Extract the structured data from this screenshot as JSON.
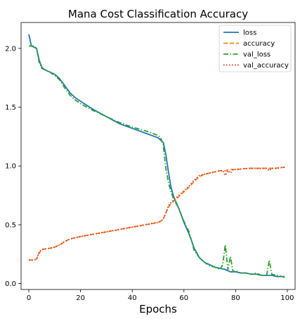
{
  "chart_data": {
    "type": "line",
    "title": "Mana Cost Classification Accuracy",
    "xlabel": "Epochs",
    "ylabel": "",
    "xlim": [
      -3,
      103
    ],
    "ylim": [
      -0.05,
      2.22
    ],
    "xticks": [
      0,
      20,
      40,
      60,
      80,
      100
    ],
    "yticks": [
      0.0,
      0.5,
      1.0,
      1.5,
      2.0
    ],
    "grid": false,
    "legend": "top-right",
    "series": [
      {
        "name": "loss",
        "color": "#1f77b4",
        "dash": "solid",
        "x": [
          0,
          1,
          2,
          3,
          4,
          5,
          6,
          8,
          10,
          12,
          14,
          16,
          18,
          20,
          25,
          30,
          35,
          40,
          45,
          50,
          51,
          52,
          53,
          54,
          55,
          56,
          58,
          60,
          62,
          64,
          66,
          68,
          70,
          72,
          74,
          76,
          78,
          80,
          82,
          84,
          86,
          88,
          90,
          92,
          94,
          96,
          98,
          99
        ],
        "y": [
          2.12,
          2.02,
          2.01,
          2.0,
          1.9,
          1.84,
          1.82,
          1.8,
          1.78,
          1.74,
          1.68,
          1.62,
          1.58,
          1.55,
          1.48,
          1.42,
          1.36,
          1.32,
          1.28,
          1.24,
          1.22,
          1.2,
          1.1,
          0.95,
          0.82,
          0.74,
          0.64,
          0.52,
          0.42,
          0.3,
          0.22,
          0.18,
          0.16,
          0.14,
          0.13,
          0.12,
          0.1,
          0.1,
          0.09,
          0.09,
          0.08,
          0.08,
          0.07,
          0.07,
          0.07,
          0.06,
          0.06,
          0.06
        ]
      },
      {
        "name": "accuracy",
        "color": "#ff7f0e",
        "dash": "dashed",
        "x": [
          0,
          2,
          3,
          4,
          5,
          8,
          10,
          12,
          14,
          16,
          18,
          20,
          25,
          30,
          35,
          40,
          45,
          50,
          51,
          52,
          53,
          54,
          55,
          56,
          58,
          60,
          62,
          64,
          66,
          68,
          70,
          72,
          74,
          76,
          78,
          80,
          85,
          90,
          95,
          99
        ],
        "y": [
          0.2,
          0.2,
          0.21,
          0.26,
          0.29,
          0.3,
          0.31,
          0.33,
          0.36,
          0.38,
          0.39,
          0.4,
          0.42,
          0.44,
          0.46,
          0.48,
          0.5,
          0.52,
          0.53,
          0.55,
          0.6,
          0.65,
          0.68,
          0.7,
          0.74,
          0.78,
          0.82,
          0.87,
          0.91,
          0.93,
          0.94,
          0.95,
          0.96,
          0.96,
          0.97,
          0.97,
          0.98,
          0.98,
          0.98,
          0.99
        ]
      },
      {
        "name": "val_loss",
        "color": "#2ca02c",
        "dash": "dashdot",
        "x": [
          0,
          1,
          2,
          3,
          4,
          5,
          6,
          8,
          10,
          12,
          14,
          16,
          18,
          20,
          25,
          30,
          35,
          40,
          45,
          50,
          51,
          52,
          53,
          54,
          55,
          56,
          58,
          60,
          62,
          64,
          66,
          68,
          70,
          72,
          74,
          75,
          76,
          77,
          78,
          79,
          80,
          82,
          84,
          86,
          88,
          90,
          92,
          93,
          94,
          96,
          98,
          99
        ],
        "y": [
          2.02,
          2.02,
          2.02,
          2.0,
          1.88,
          1.83,
          1.82,
          1.8,
          1.77,
          1.73,
          1.66,
          1.6,
          1.56,
          1.53,
          1.47,
          1.42,
          1.37,
          1.33,
          1.3,
          1.26,
          1.24,
          1.18,
          0.98,
          0.86,
          0.78,
          0.72,
          0.64,
          0.53,
          0.44,
          0.28,
          0.22,
          0.18,
          0.15,
          0.14,
          0.12,
          0.16,
          0.33,
          0.12,
          0.23,
          0.1,
          0.11,
          0.09,
          0.09,
          0.08,
          0.09,
          0.07,
          0.07,
          0.2,
          0.08,
          0.07,
          0.06,
          0.05
        ]
      },
      {
        "name": "val_accuracy",
        "color": "#d62728",
        "dash": "dotted",
        "x": [
          0,
          2,
          3,
          4,
          5,
          8,
          10,
          12,
          14,
          16,
          18,
          20,
          25,
          30,
          35,
          40,
          45,
          50,
          51,
          52,
          53,
          54,
          55,
          56,
          58,
          60,
          62,
          64,
          66,
          68,
          70,
          72,
          74,
          75,
          76,
          77,
          78,
          79,
          80,
          85,
          90,
          92,
          93,
          94,
          96,
          99
        ],
        "y": [
          0.2,
          0.2,
          0.21,
          0.27,
          0.29,
          0.3,
          0.31,
          0.33,
          0.36,
          0.38,
          0.39,
          0.4,
          0.42,
          0.44,
          0.46,
          0.48,
          0.5,
          0.52,
          0.53,
          0.55,
          0.6,
          0.66,
          0.69,
          0.71,
          0.75,
          0.79,
          0.83,
          0.88,
          0.92,
          0.93,
          0.94,
          0.95,
          0.96,
          0.96,
          0.92,
          0.96,
          0.94,
          0.97,
          0.97,
          0.98,
          0.98,
          0.98,
          0.96,
          0.98,
          0.98,
          0.99
        ]
      }
    ]
  }
}
